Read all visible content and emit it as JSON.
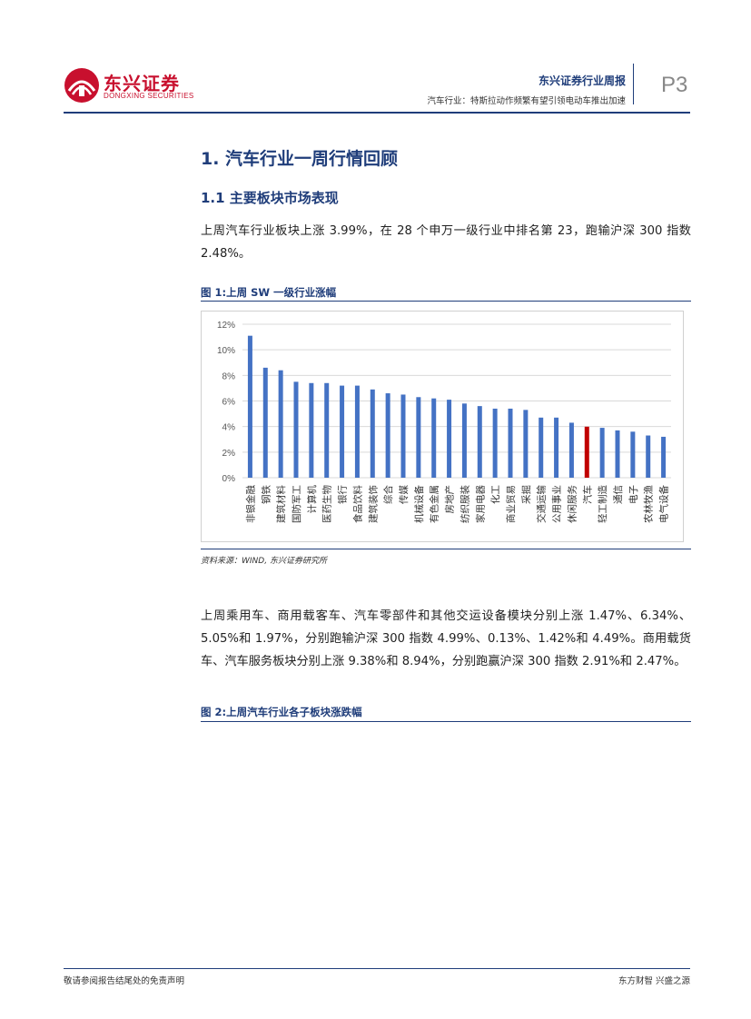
{
  "header": {
    "logo_cn": "东兴证券",
    "logo_en": "DONGXING SECURITIES",
    "report_type": "东兴证券行业周报",
    "report_subtitle": "汽车行业：特斯拉动作频繁有望引领电动车推出加速",
    "page_number": "P3"
  },
  "section": {
    "h1": "1. 汽车行业一周行情回顾",
    "h2": "1.1 主要板块市场表现",
    "para1": "上周汽车行业板块上涨 3.99%，在 28 个申万一级行业中排名第 23，跑输沪深 300 指数 2.48%。",
    "para2": "上周乘用车、商用载客车、汽车零部件和其他交运设备模块分别上涨 1.47%、6.34%、5.05%和 1.97%，分别跑输沪深 300 指数 4.99%、0.13%、1.42%和 4.49%。商用载货车、汽车服务板块分别上涨 9.38%和 8.94%，分别跑赢沪深 300 指数 2.91%和 2.47%。"
  },
  "figures": {
    "fig1_title": "图 1:上周 SW 一级行业涨幅",
    "fig1_source": "资料来源：WIND, 东兴证券研究所",
    "fig2_title": "图 2:上周汽车行业各子板块涨跌幅"
  },
  "chart_data": {
    "type": "bar",
    "categories": [
      "非银金融",
      "钢铁",
      "建筑材料",
      "国防军工",
      "计算机",
      "医药生物",
      "银行",
      "食品饮料",
      "建筑装饰",
      "综合",
      "传媒",
      "机械设备",
      "有色金属",
      "房地产",
      "纺织服装",
      "家用电器",
      "化工",
      "商业贸易",
      "采掘",
      "交通运输",
      "公用事业",
      "休闲服务",
      "汽车",
      "轻工制造",
      "通信",
      "电子",
      "农林牧渔",
      "电气设备"
    ],
    "values": [
      11.1,
      8.6,
      8.4,
      7.5,
      7.4,
      7.4,
      7.2,
      7.2,
      6.9,
      6.6,
      6.5,
      6.3,
      6.2,
      6.1,
      5.8,
      5.6,
      5.4,
      5.4,
      5.3,
      4.7,
      4.7,
      4.3,
      3.99,
      3.9,
      3.7,
      3.6,
      3.3,
      3.2
    ],
    "highlight": "汽车",
    "colors": {
      "bar": "#4472c4",
      "highlight": "#c00000"
    },
    "y_ticks": [
      "0%",
      "2%",
      "4%",
      "6%",
      "8%",
      "10%",
      "12%"
    ],
    "ylim": [
      0,
      12
    ],
    "grid": true
  },
  "footer": {
    "left": "敬请参阅报告结尾处的免责声明",
    "right": "东方财智  兴盛之源"
  }
}
